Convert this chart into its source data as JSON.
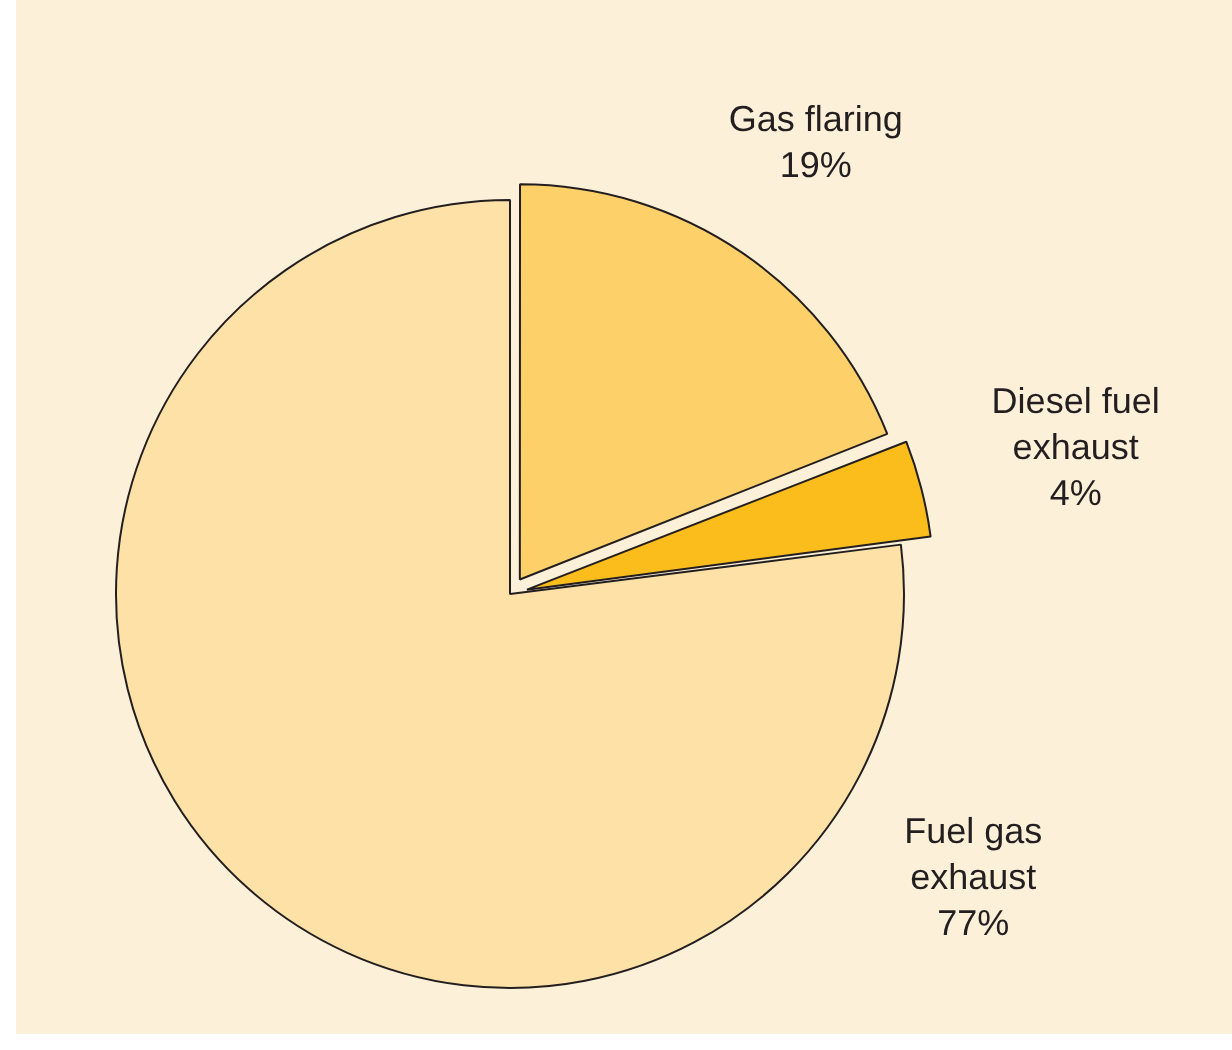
{
  "chart_data": {
    "type": "pie",
    "categories": [
      "Gas flaring",
      "Diesel fuel exhaust",
      "Fuel gas exhaust"
    ],
    "values": [
      19,
      4,
      77
    ],
    "value_labels": [
      "19%",
      "4%",
      "77%"
    ],
    "colors": [
      "#fdd06a",
      "#fbbd1c",
      "#fde1a7"
    ],
    "legend": false
  }
}
